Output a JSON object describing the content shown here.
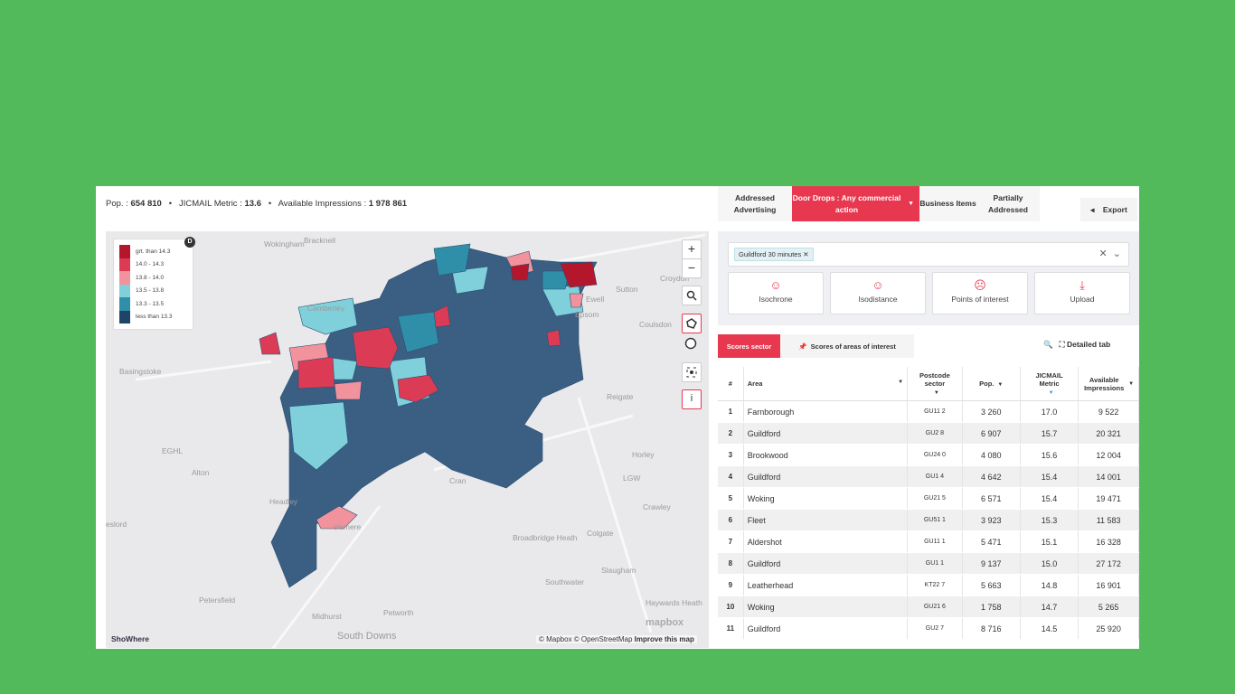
{
  "stats": {
    "pop_label": "Pop. :",
    "pop": "654 810",
    "metric_label": "JICMAIL Metric :",
    "metric": "13.6",
    "impressions_label": "Available Impressions :",
    "impressions": "1 978 861"
  },
  "legend": {
    "badge": "D",
    "items": [
      {
        "label": "grt. than 14.3",
        "color": "#b4162c"
      },
      {
        "label": "14.0 - 14.3",
        "color": "#dc3b55"
      },
      {
        "label": "13.8 - 14.0",
        "color": "#f1929d"
      },
      {
        "label": "13.5 - 13.8",
        "color": "#7fd0da"
      },
      {
        "label": "13.3 - 13.5",
        "color": "#2f8fa8"
      },
      {
        "label": "less than 13.3",
        "color": "#1e4468"
      }
    ]
  },
  "map": {
    "labels": [
      "Wokingham",
      "Bracknell",
      "Camberley",
      "Basingstoke",
      "Sutton",
      "Croydon",
      "Ewell",
      "Epsom",
      "Coulsdon",
      "Reigate",
      "Horley",
      "LGW",
      "Crawley",
      "EGHL",
      "Alton",
      "Headley",
      "eslord",
      "slemere",
      "Cran",
      "Broadbridge Heath",
      "Colgate",
      "Slaugham",
      "Southwater",
      "Haywards Heath",
      "Petersfield",
      "Midhurst",
      "Petworth",
      "South Downs"
    ],
    "zoom_in": "+",
    "zoom_out": "−",
    "info": "i",
    "brand": "ShoWhere",
    "logo": "mapbox",
    "attribution": "© Mapbox © OpenStreetMap",
    "improve": "Improve this map"
  },
  "tabs": [
    "Addressed Advertising",
    "Door Drops : Any commercial action",
    "Business Items",
    "Partially Addressed"
  ],
  "export": "Export",
  "search": {
    "chip": "Guildford 30 minutes"
  },
  "tools": [
    "Isochrone",
    "Isodistance",
    "Points of interest",
    "Upload"
  ],
  "score_tabs": [
    "Scores sector",
    "Scores of areas of interest"
  ],
  "detailed": "Detailed tab",
  "table": {
    "columns": [
      "#",
      "Area",
      "Postcode sector",
      "Pop.",
      "JICMAIL Metric",
      "Available Impressions"
    ],
    "rows": [
      [
        "1",
        "Farnborough",
        "GU11 2",
        "3 260",
        "17.0",
        "9 522"
      ],
      [
        "2",
        "Guildford",
        "GU2 8",
        "6 907",
        "15.7",
        "20 321"
      ],
      [
        "3",
        "Brookwood",
        "GU24 0",
        "4 080",
        "15.6",
        "12 004"
      ],
      [
        "4",
        "Guildford",
        "GU1 4",
        "4 642",
        "15.4",
        "14 001"
      ],
      [
        "5",
        "Woking",
        "GU21 5",
        "6 571",
        "15.4",
        "19 471"
      ],
      [
        "6",
        "Fleet",
        "GU51 1",
        "3 923",
        "15.3",
        "11 583"
      ],
      [
        "7",
        "Aldershot",
        "GU11 1",
        "5 471",
        "15.1",
        "16 328"
      ],
      [
        "8",
        "Guildford",
        "GU1 1",
        "9 137",
        "15.0",
        "27 172"
      ],
      [
        "9",
        "Leatherhead",
        "KT22 7",
        "5 663",
        "14.8",
        "16 901"
      ],
      [
        "10",
        "Woking",
        "GU21 6",
        "1 758",
        "14.7",
        "5 265"
      ],
      [
        "11",
        "Guildford",
        "GU2 7",
        "8 716",
        "14.5",
        "25 920"
      ]
    ]
  }
}
